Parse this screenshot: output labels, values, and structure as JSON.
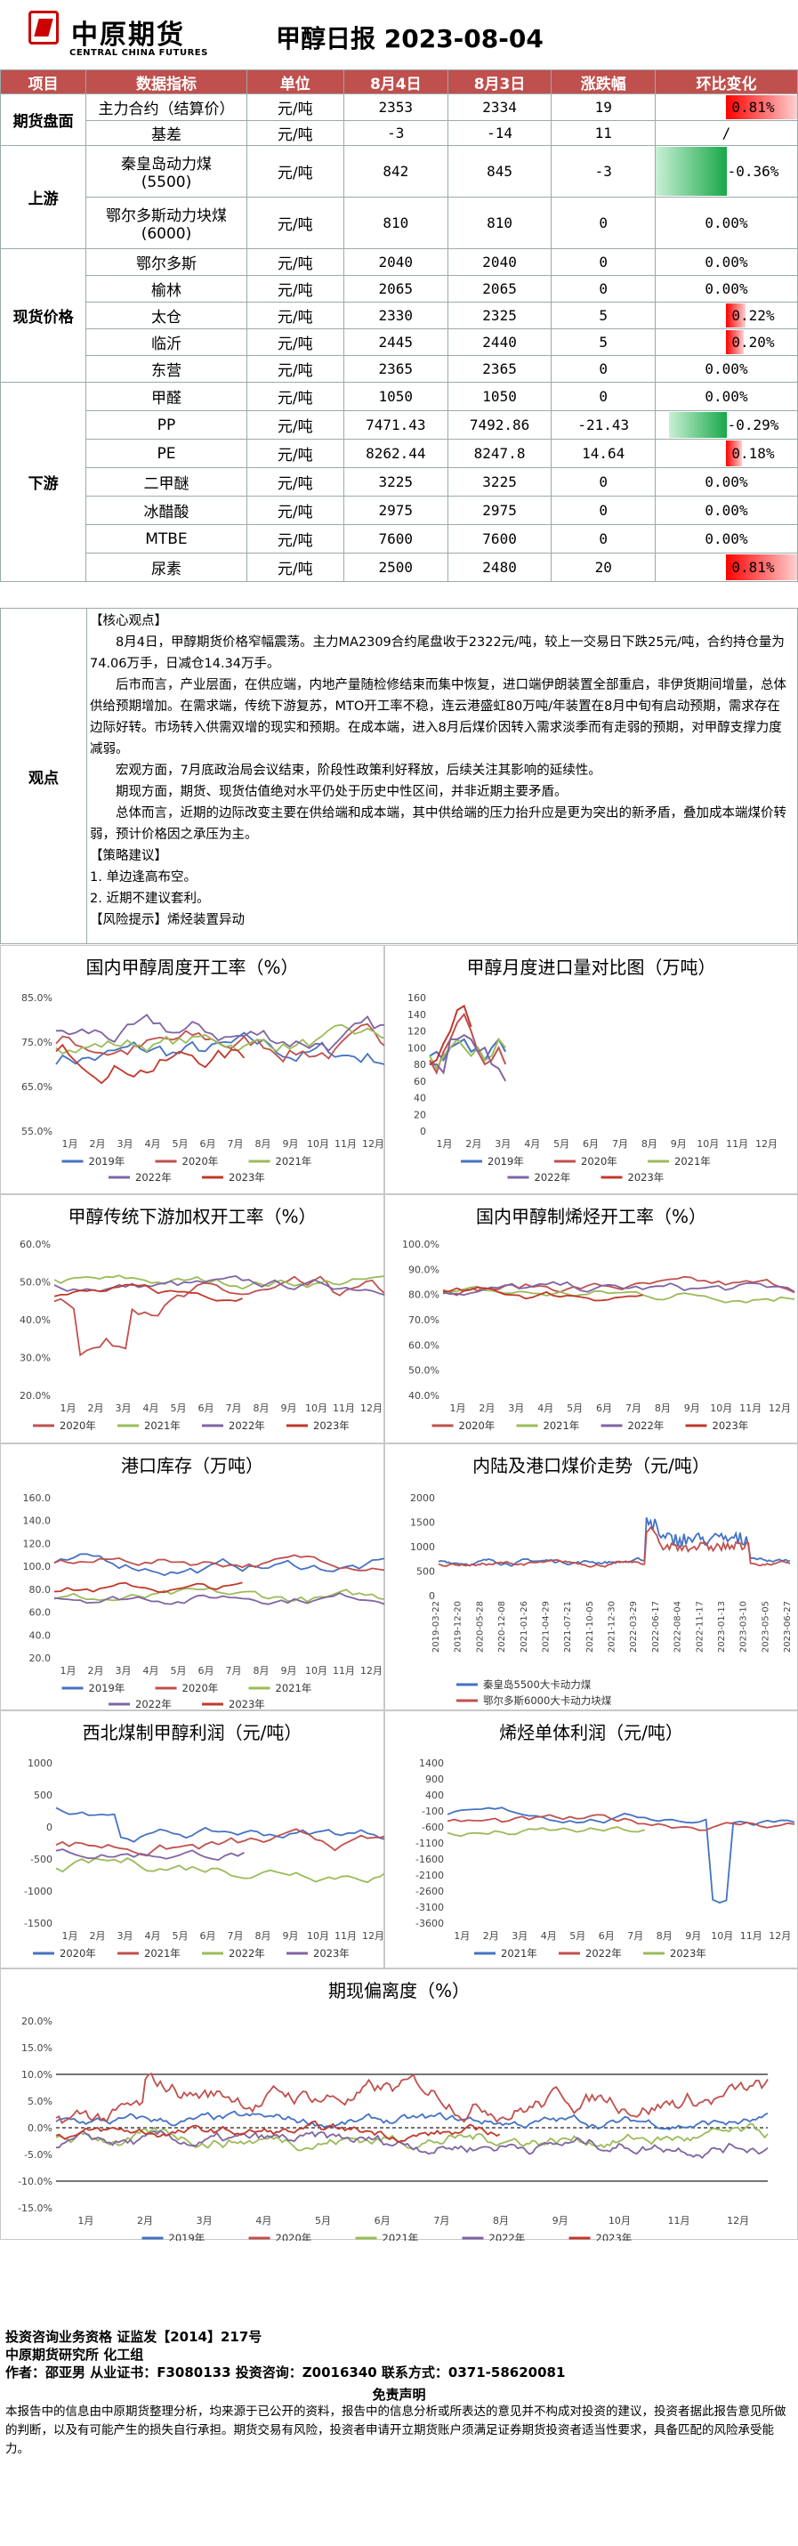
{
  "header": {
    "logo_cn": "中原期货",
    "logo_en": "CENTRAL CHINA FUTURES",
    "title": "甲醇日报  2023-08-04"
  },
  "table": {
    "headers": [
      "项目",
      "数据指标",
      "单位",
      "8月4日",
      "8月3日",
      "涨跌幅",
      "环比变化"
    ],
    "rows": [
      {
        "cat": "期货盘面",
        "span": 2,
        "name": "主力合约（结算价）",
        "unit": "元/吨",
        "d1": "2353",
        "d2": "2334",
        "diff": "19",
        "chg": "0.81%",
        "pct": 0.81,
        "h": 30
      },
      {
        "name": "基差",
        "unit": "元/吨",
        "d1": "-3",
        "d2": "-14",
        "diff": "11",
        "chg": "/",
        "pct": 0,
        "h": 27
      },
      {
        "cat": "上游",
        "span": 2,
        "name": "秦皇岛动力煤\n(5500)",
        "unit": "元/吨",
        "d1": "842",
        "d2": "845",
        "diff": "-3",
        "chg": "-0.36%",
        "pct": -0.36,
        "h": 58
      },
      {
        "name": "鄂尔多斯动力块煤\n(6000)",
        "unit": "元/吨",
        "d1": "810",
        "d2": "810",
        "diff": "0",
        "chg": "0.00%",
        "pct": 0,
        "h": 58
      },
      {
        "cat": "现货价格",
        "span": 5,
        "name": "鄂尔多斯",
        "unit": "元/吨",
        "d1": "2040",
        "d2": "2040",
        "diff": "0",
        "chg": "0.00%",
        "pct": 0,
        "h": 30
      },
      {
        "name": "榆林",
        "unit": "元/吨",
        "d1": "2065",
        "d2": "2065",
        "diff": "0",
        "chg": "0.00%",
        "pct": 0,
        "h": 30
      },
      {
        "name": "太仓",
        "unit": "元/吨",
        "d1": "2330",
        "d2": "2325",
        "diff": "5",
        "chg": "0.22%",
        "pct": 0.22,
        "h": 30
      },
      {
        "name": "临沂",
        "unit": "元/吨",
        "d1": "2445",
        "d2": "2440",
        "diff": "5",
        "chg": "0.20%",
        "pct": 0.2,
        "h": 30
      },
      {
        "name": "东营",
        "unit": "元/吨",
        "d1": "2365",
        "d2": "2365",
        "diff": "0",
        "chg": "0.00%",
        "pct": 0,
        "h": 30
      },
      {
        "cat": "下游",
        "span": 7,
        "name": "甲醛",
        "unit": "元/吨",
        "d1": "1050",
        "d2": "1050",
        "diff": "0",
        "chg": "0.00%",
        "pct": 0,
        "h": 32
      },
      {
        "name": "PP",
        "unit": "元/吨",
        "d1": "7471.43",
        "d2": "7492.86",
        "diff": "-21.43",
        "chg": "-0.29%",
        "pct": -0.29,
        "h": 32
      },
      {
        "name": "PE",
        "unit": "元/吨",
        "d1": "8262.44",
        "d2": "8247.8",
        "diff": "14.64",
        "chg": "0.18%",
        "pct": 0.18,
        "h": 32
      },
      {
        "name": "二甲醚",
        "unit": "元/吨",
        "d1": "3225",
        "d2": "3225",
        "diff": "0",
        "chg": "0.00%",
        "pct": 0,
        "h": 32
      },
      {
        "name": "冰醋酸",
        "unit": "元/吨",
        "d1": "2975",
        "d2": "2975",
        "diff": "0",
        "chg": "0.00%",
        "pct": 0,
        "h": 32
      },
      {
        "name": "MTBE",
        "unit": "元/吨",
        "d1": "7600",
        "d2": "7600",
        "diff": "0",
        "chg": "0.00%",
        "pct": 0,
        "h": 32
      },
      {
        "name": "尿素",
        "unit": "元/吨",
        "d1": "2500",
        "d2": "2480",
        "diff": "20",
        "chg": "0.81%",
        "pct": 0.81,
        "h": 32
      }
    ]
  },
  "view": {
    "cat": "观点",
    "paras": [
      {
        "t": "【核心观点】",
        "ind": false
      },
      {
        "t": "8月4日，甲醇期货价格窄幅震荡。主力MA2309合约尾盘收于2322元/吨，较上一交易日下跌25元/吨，合约持仓量为74.06万手，日减仓14.34万手。",
        "ind": true
      },
      {
        "t": "后市而言，产业层面，在供应端，内地产量随检修结束而集中恢复，进口端伊朗装置全部重启，非伊货期间增量，总体供给预期增加。在需求端，传统下游复苏，MTO开工率不稳，连云港盛虹80万吨/年装置在8月中旬有启动预期，需求存在边际好转。市场转入供需双增的现实和预期。在成本端，进入8月后煤价因转入需求淡季而有走弱的预期，对甲醇支撑力度减弱。",
        "ind": true
      },
      {
        "t": "宏观方面，7月底政治局会议结束，阶段性政策利好释放，后续关注其影响的延续性。",
        "ind": true
      },
      {
        "t": "期现方面，期货、现货估值绝对水平仍处于历史中性区间，并非近期主要矛盾。",
        "ind": true
      },
      {
        "t": "总体而言，近期的边际改变主要在供给端和成本端，其中供给端的压力抬升应是更为突出的新矛盾，叠加成本端煤价转弱，预计价格因之承压为主。",
        "ind": true
      },
      {
        "t": "【策略建议】",
        "ind": false
      },
      {
        "t": "1. 单边逢高布空。",
        "ind": false
      },
      {
        "t": "2. 近期不建议套利。",
        "ind": false
      },
      {
        "t": "【风险提示】烯烃装置异动",
        "ind": false
      }
    ]
  },
  "months": [
    "1月",
    "2月",
    "3月",
    "4月",
    "5月",
    "6月",
    "7月",
    "8月",
    "9月",
    "10月",
    "11月",
    "12月"
  ],
  "colors": {
    "y2019": "#4472c4",
    "y2020": "#c0504d",
    "y2021": "#9bbb59",
    "y2022": "#8064a2",
    "y2023": "#c0392b",
    "pos": "#ff0000",
    "neg": "#18a84a"
  },
  "charts": {
    "c1": {
      "title": "国内甲醇周度开工率（%）",
      "yticks": [
        "85.0%",
        "75.0%",
        "65.0%",
        "55.0%"
      ],
      "ymin": 55,
      "ymax": 85,
      "legend": [
        "2019年",
        "2020年",
        "2021年",
        "2022年",
        "2023年"
      ]
    },
    "c2": {
      "title": "甲醇月度进口量对比图（万吨）",
      "yticks": [
        "160",
        "140",
        "120",
        "100",
        "80",
        "60",
        "40",
        "20",
        "0"
      ],
      "ymin": 0,
      "ymax": 160,
      "legend": [
        "2019年",
        "2020年",
        "2021年",
        "2022年",
        "2023年"
      ]
    },
    "c3": {
      "title": "甲醇传统下游加权开工率（%）",
      "yticks": [
        "60.0%",
        "50.0%",
        "40.0%",
        "30.0%",
        "20.0%"
      ],
      "ymin": 20,
      "ymax": 60,
      "legend": [
        "2020年",
        "2021年",
        "2022年",
        "2023年"
      ]
    },
    "c4": {
      "title": "国内甲醇制烯烃开工率（%）",
      "yticks": [
        "100.0%",
        "90.0%",
        "80.0%",
        "70.0%",
        "60.0%",
        "50.0%",
        "40.0%"
      ],
      "ymin": 40,
      "ymax": 100,
      "legend": [
        "2020年",
        "2021年",
        "2022年",
        "2023年"
      ]
    },
    "c5": {
      "title": "港口库存（万吨）",
      "yticks": [
        "160.0",
        "140.0",
        "120.0",
        "100.0",
        "80.0",
        "60.0",
        "40.0",
        "20.0"
      ],
      "ymin": 20,
      "ymax": 160,
      "legend": [
        "2019年",
        "2020年",
        "2021年",
        "2022年",
        "2023年"
      ]
    },
    "c6": {
      "title": "内陆及港口煤价走势（元/吨）",
      "yticks": [
        "2000",
        "1500",
        "1000",
        "500",
        "0"
      ],
      "ymin": 0,
      "ymax": 2000,
      "xticks": [
        "2019-03-22",
        "2019-12-20",
        "2020-05-28",
        "2020-12-08",
        "2021-01-26",
        "2021-04-29",
        "2021-07-21",
        "2021-10-05",
        "2021-12-30",
        "2022-03-29",
        "2022-06-17",
        "2022-08-04",
        "2022-11-17",
        "2023-01-13",
        "2023-03-10",
        "2023-05-05",
        "2023-06-27"
      ],
      "legend": [
        "秦皇岛5500大卡动力煤",
        "鄂尔多斯6000大卡动力块煤"
      ]
    },
    "c7": {
      "title": "西北煤制甲醇利润（元/吨）",
      "yticks": [
        "1000",
        "500",
        "0",
        "-500",
        "-1000",
        "-1500"
      ],
      "ymin": -1500,
      "ymax": 1000,
      "legend": [
        "2020年",
        "2021年",
        "2022年",
        "2023年"
      ]
    },
    "c8": {
      "title": "烯烃单体利润（元/吨）",
      "yticks": [
        "1400",
        "900",
        "400",
        "-100",
        "-600",
        "-1100",
        "-1600",
        "-2100",
        "-2600",
        "-3100",
        "-3600"
      ],
      "ymin": -3600,
      "ymax": 1400,
      "legend": [
        "2021年",
        "2022年",
        "2023年"
      ]
    },
    "c9": {
      "title": "期现偏离度（%）",
      "yticks": [
        "20.0%",
        "15.0%",
        "10.0%",
        "5.0%",
        "0.0%",
        "-5.0%",
        "-10.0%",
        "-15.0%"
      ],
      "ymin": -15,
      "ymax": 20,
      "legend": [
        "2019年",
        "2020年",
        "2021年",
        "2022年",
        "2023年"
      ]
    }
  },
  "footer": {
    "line1": "投资咨询业务资格  证监发【2014】217号",
    "line2": "中原期货研究所  化工组",
    "line3": "作者：邵亚男      从业证书：F3080133      投资咨询：Z0016340      联系方式：0371-58620081",
    "disc_title": "免责声明",
    "disc": "本报告中的信息由中原期货整理分析，均来源于已公开的资料，报告中的信息分析或所表达的意见并不构成对投资的建议，投资者据此报告意见所做的判断，以及有可能产生的损失自行承担。期货交易有风险，投资者申请开立期货账户须满足证券期货投资者适当性要求，具备匹配的风险承受能力。"
  }
}
